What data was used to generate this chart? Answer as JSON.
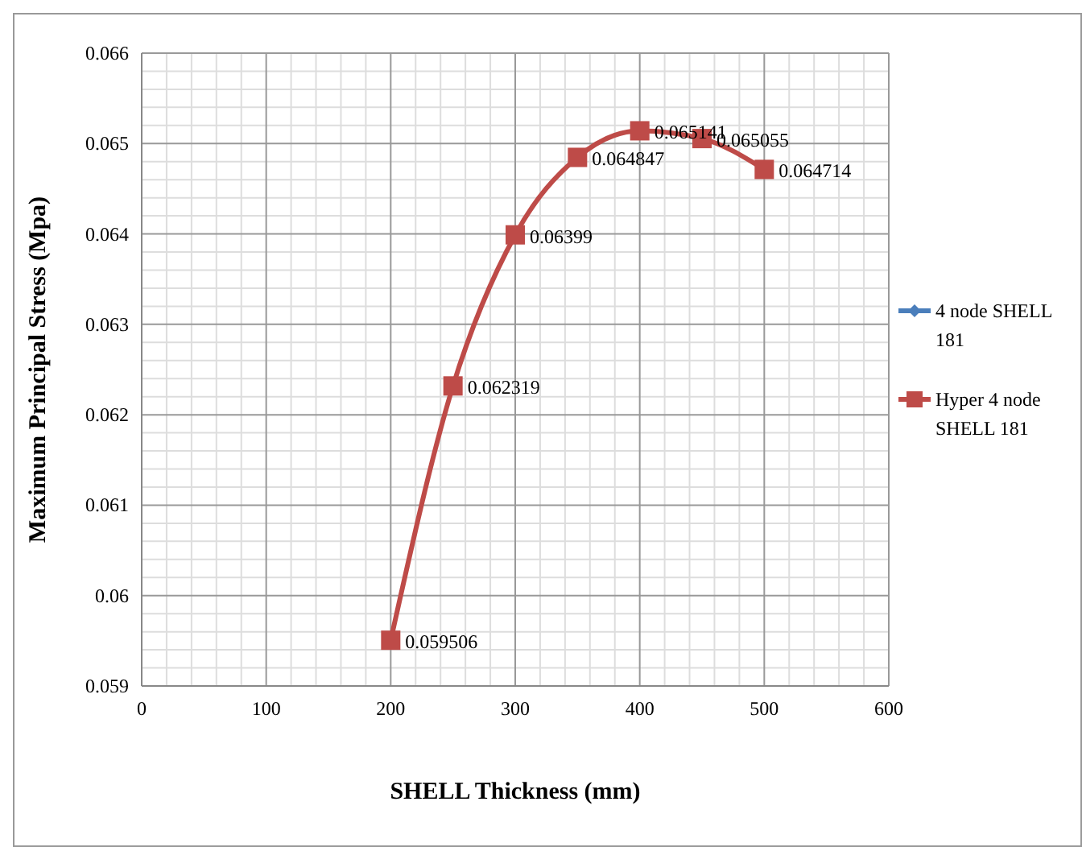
{
  "chart_data": {
    "type": "line",
    "xlabel": "SHELL Thickness (mm)",
    "ylabel": "Maximum Principal Stress (Mpa)",
    "x": [
      200,
      250,
      300,
      350,
      400,
      450,
      500
    ],
    "series": [
      {
        "name": "4 node SHELL 181",
        "color": "#4a7ebb",
        "marker": "diamond",
        "values": [
          null,
          null,
          null,
          null,
          null,
          null,
          null
        ]
      },
      {
        "name": "Hyper 4 node SHELL 181",
        "color": "#be4b48",
        "marker": "square",
        "values": [
          0.059506,
          0.062319,
          0.06399,
          0.064847,
          0.065141,
          0.065055,
          0.064714
        ]
      }
    ],
    "data_labels": true,
    "xlim": [
      0,
      600
    ],
    "xticks": [
      0,
      100,
      200,
      300,
      400,
      500,
      600
    ],
    "ylim": [
      0.059,
      0.066
    ],
    "yticks": [
      0.059,
      {
        "value": 0.06,
        "label": "0.06"
      },
      0.061,
      0.062,
      0.063,
      0.064,
      0.065,
      0.066
    ],
    "grid": true,
    "legend": "right"
  }
}
